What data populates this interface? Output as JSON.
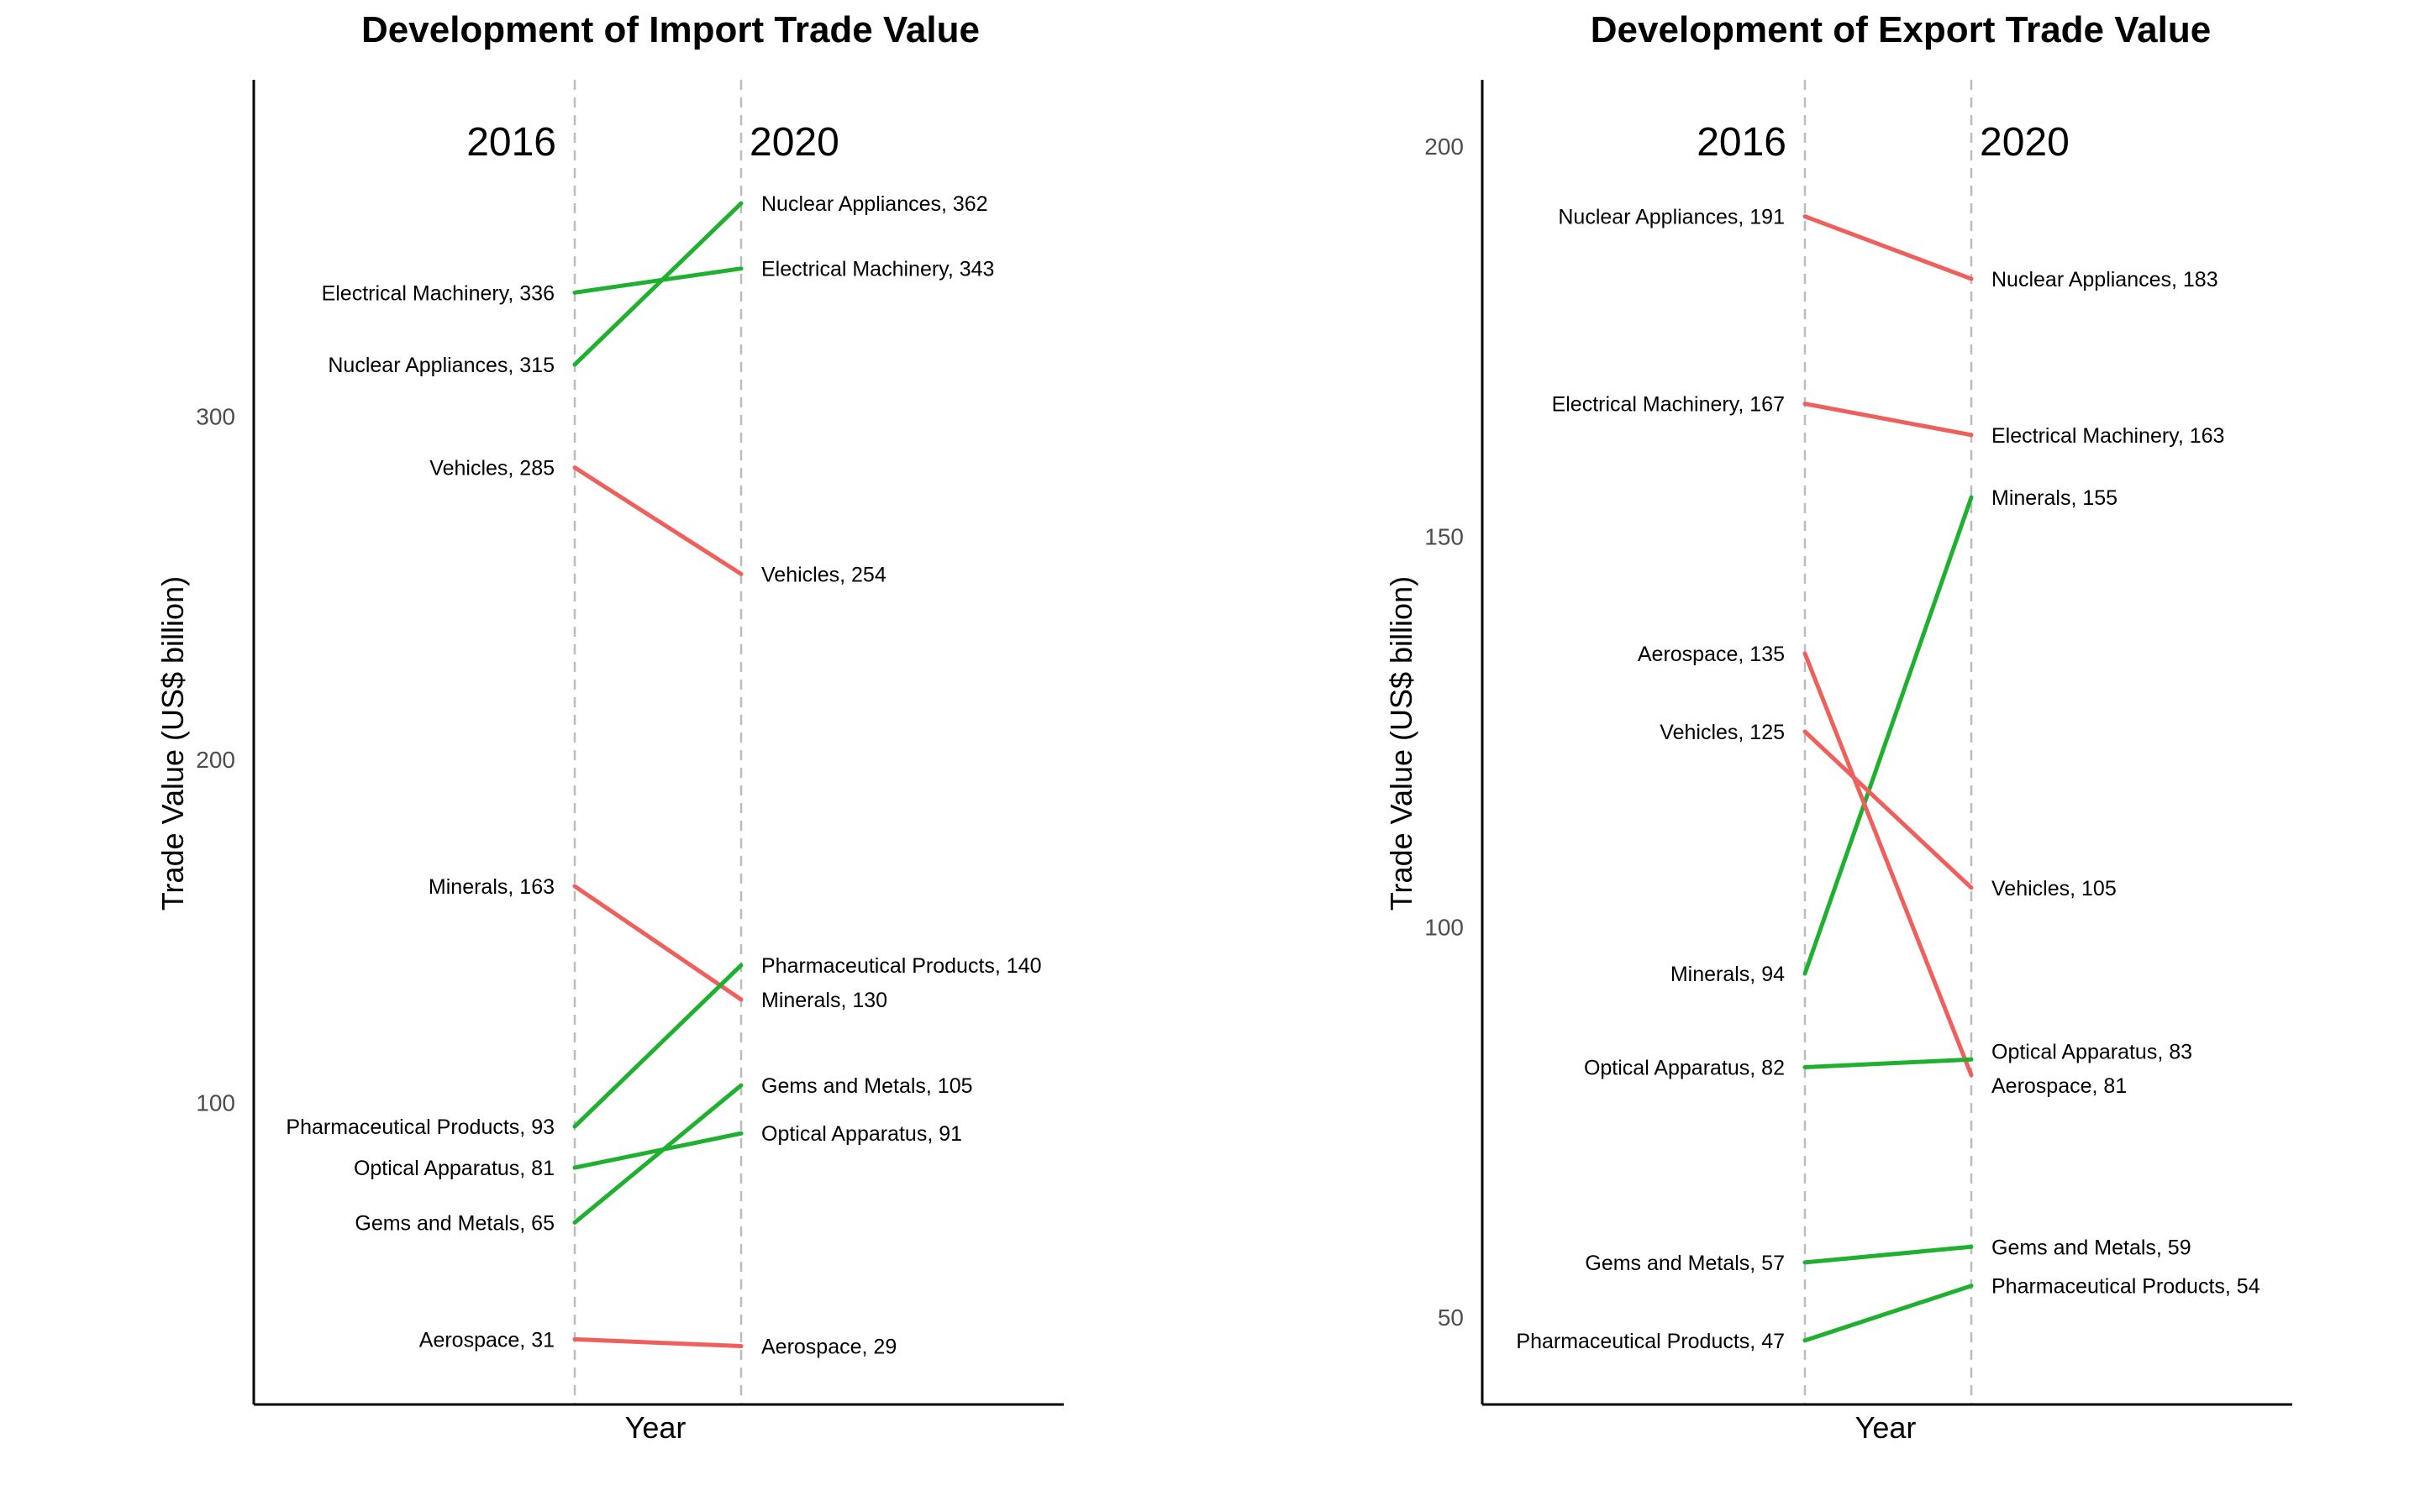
{
  "colors": {
    "increase": "#1fb030",
    "decrease": "#ef5f5c"
  },
  "chart_data": [
    {
      "type": "line",
      "title": "Development of Import Trade Value",
      "xlabel": "Year",
      "ylabel": "Trade Value (US$ billion)",
      "x": [
        "2016",
        "2020"
      ],
      "yticks": [
        100,
        200,
        300
      ],
      "ylim": [
        12,
        398
      ],
      "grid": false,
      "legend": "none",
      "series": [
        {
          "name": "Nuclear Appliances",
          "values": [
            315,
            362
          ],
          "labels": [
            "Nuclear Appliances, 315",
            "Nuclear Appliances, 362"
          ]
        },
        {
          "name": "Electrical Machinery",
          "values": [
            336,
            343
          ],
          "labels": [
            "Electrical Machinery, 336",
            "Electrical Machinery, 343"
          ]
        },
        {
          "name": "Vehicles",
          "values": [
            285,
            254
          ],
          "labels": [
            "Vehicles, 285",
            "Vehicles, 254"
          ]
        },
        {
          "name": "Minerals",
          "values": [
            163,
            130
          ],
          "labels": [
            "Minerals, 163",
            "Minerals, 130"
          ]
        },
        {
          "name": "Pharmaceutical Products",
          "values": [
            93,
            140
          ],
          "labels": [
            "Pharmaceutical Products, 93",
            "Pharmaceutical Products, 140"
          ]
        },
        {
          "name": "Gems and Metals",
          "values": [
            65,
            105
          ],
          "labels": [
            "Gems and Metals, 65",
            "Gems and Metals, 105"
          ]
        },
        {
          "name": "Optical Apparatus",
          "values": [
            81,
            91
          ],
          "labels": [
            "Optical Apparatus, 81",
            "Optical Apparatus, 91"
          ]
        },
        {
          "name": "Aerospace",
          "values": [
            31,
            29
          ],
          "labels": [
            "Aerospace, 31",
            "Aerospace, 29"
          ]
        }
      ]
    },
    {
      "type": "line",
      "title": "Development of Export Trade Value",
      "xlabel": "Year",
      "ylabel": "Trade Value (US$ billion)",
      "x": [
        "2016",
        "2020"
      ],
      "yticks": [
        50,
        100,
        150,
        200
      ],
      "ylim": [
        38.8,
        208.5
      ],
      "grid": false,
      "legend": "none",
      "series": [
        {
          "name": "Nuclear Appliances",
          "values": [
            191,
            183
          ],
          "labels": [
            "Nuclear Appliances, 191",
            "Nuclear Appliances, 183"
          ]
        },
        {
          "name": "Electrical Machinery",
          "values": [
            167,
            163
          ],
          "labels": [
            "Electrical Machinery, 167",
            "Electrical Machinery, 163"
          ]
        },
        {
          "name": "Minerals",
          "values": [
            94,
            155
          ],
          "labels": [
            "Minerals, 94",
            "Minerals, 155"
          ]
        },
        {
          "name": "Aerospace",
          "values": [
            135,
            81
          ],
          "labels": [
            "Aerospace, 135",
            "Aerospace, 81"
          ]
        },
        {
          "name": "Vehicles",
          "values": [
            125,
            105
          ],
          "labels": [
            "Vehicles, 125",
            "Vehicles, 105"
          ]
        },
        {
          "name": "Optical Apparatus",
          "values": [
            82,
            83
          ],
          "labels": [
            "Optical Apparatus, 82",
            "Optical Apparatus, 83"
          ]
        },
        {
          "name": "Gems and Metals",
          "values": [
            57,
            59
          ],
          "labels": [
            "Gems and Metals, 57",
            "Gems and Metals, 59"
          ]
        },
        {
          "name": "Pharmaceutical Products",
          "values": [
            47,
            54
          ],
          "labels": [
            "Pharmaceutical Products, 47",
            "Pharmaceutical Products, 54"
          ]
        }
      ]
    }
  ]
}
